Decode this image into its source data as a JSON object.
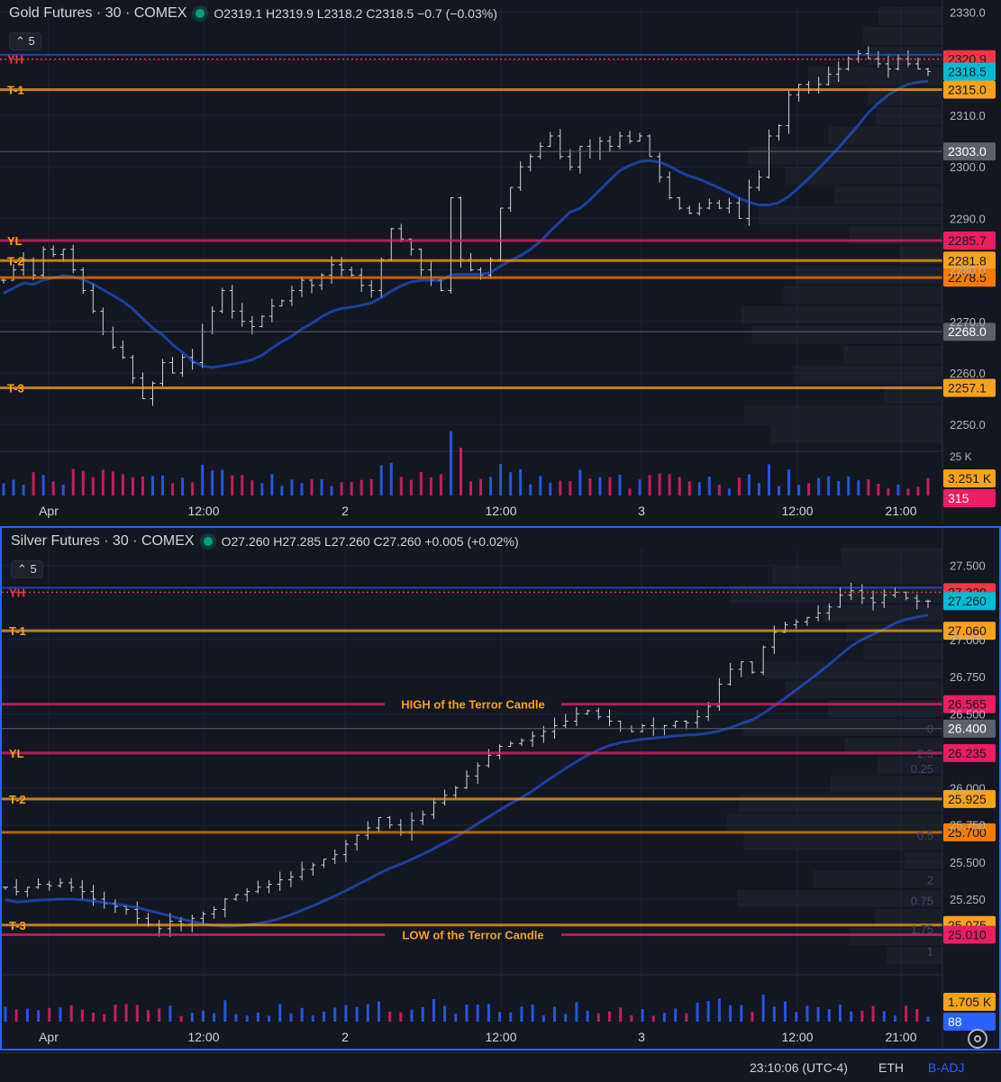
{
  "colors": {
    "bg": "#131722",
    "grid": "#1f2330",
    "up_candle": "#d1d4dc",
    "ma": "#2962ff",
    "orange": "#f7a21b",
    "pink": "#e91e63",
    "red": "#f23645",
    "cyan": "#00bcd4",
    "gray": "#5d606b",
    "vol_up": "#2962ff",
    "vol_down": "#e91e63",
    "blue_tag": "#2962ff"
  },
  "panes": [
    {
      "id": "gold",
      "title": "Gold Futures · 30 · COMEX",
      "ohlc": "O2319.1  H2319.9  L2318.2  C2318.5  −0.7 (−0.03%)",
      "indicator_count": "5",
      "chart_data": {
        "type": "candlestick",
        "title": "Gold Futures · 30 · COMEX",
        "ylim": [
          2246,
          2331
        ],
        "y_ticks": [
          2250.0,
          2260.0,
          2270.0,
          2280.0,
          2290.0,
          2300.0,
          2310.0,
          2330.0
        ],
        "y_tick_labels": [
          "2250.0",
          "2260.0",
          "2270.0",
          "2280.0",
          "2290.0",
          "2300.0",
          "2310.0",
          "2330.0"
        ],
        "x_tick_labels": [
          "Apr",
          "12:00",
          "2",
          "12:00",
          "3",
          "12:00",
          "21:00"
        ],
        "close_path": [
          2278,
          2280,
          2282,
          2279,
          2284,
          2283,
          2284,
          2280,
          2276,
          2272,
          2268,
          2265,
          2263,
          2259,
          2255,
          2258,
          2262,
          2260,
          2263,
          2262,
          2268,
          2272,
          2276,
          2272,
          2270,
          2269,
          2271,
          2273,
          2274,
          2276,
          2278,
          2277,
          2279,
          2281,
          2280,
          2279,
          2277,
          2276,
          2282,
          2288,
          2286,
          2284,
          2280,
          2278,
          2276,
          2294,
          2282,
          2280,
          2279,
          2282,
          2292,
          2296,
          2300,
          2302,
          2304,
          2306,
          2302,
          2300,
          2304,
          2303,
          2305,
          2304,
          2306,
          2305,
          2306,
          2302,
          2298,
          2294,
          2292,
          2291,
          2292,
          2293,
          2292,
          2293,
          2290,
          2296,
          2298,
          2306,
          2308,
          2314,
          2316,
          2315,
          2316,
          2318,
          2319,
          2321,
          2322,
          2321,
          2320,
          2319,
          2321,
          2320,
          2319,
          2318.5
        ],
        "volume_label": "25 K",
        "levels": [
          {
            "label": "YH",
            "price": 2320.9,
            "tag": "2320.9",
            "color": "#f23645",
            "style": "dotted"
          },
          {
            "label": "",
            "price": 2318.5,
            "tag": "2318.5",
            "color": "#00bcd4",
            "style": "none"
          },
          {
            "label": "T-1",
            "price": 2315.0,
            "tag": "2315.0",
            "color": "#f7a21b",
            "style": "solid"
          },
          {
            "label": "",
            "price": 2303.0,
            "tag": "2303.0",
            "color": "#5d606b",
            "style": "thin"
          },
          {
            "label": "YL",
            "price": 2285.7,
            "tag": "2285.7",
            "color": "#e91e63",
            "style": "solid"
          },
          {
            "label": "T-2",
            "price": 2281.8,
            "tag": "2281.8",
            "color": "#f7a21b",
            "style": "solid"
          },
          {
            "label": "",
            "price": 2278.5,
            "tag": "2278.5",
            "color": "#f57c00",
            "style": "solid"
          },
          {
            "label": "",
            "price": 2268.0,
            "tag": "2268.0",
            "color": "#5d606b",
            "style": "thin"
          },
          {
            "label": "T-3",
            "price": 2257.1,
            "tag": "2257.1",
            "color": "#f7a21b",
            "style": "solid"
          }
        ],
        "volume_tags": [
          {
            "text": "3.251 K",
            "color": "#f7a21b"
          },
          {
            "text": "315",
            "color": "#e91e63"
          }
        ],
        "annotations": []
      }
    },
    {
      "id": "silver",
      "title": "Silver Futures · 30 · COMEX",
      "ohlc": "O27.260  H27.285  L27.260  C27.260  +0.005 (+0.02%)",
      "indicator_count": "5",
      "chart_data": {
        "type": "candlestick",
        "title": "Silver Futures · 30 · COMEX",
        "ylim": [
          24.8,
          27.62
        ],
        "y_ticks": [
          25.25,
          25.5,
          25.75,
          26.0,
          26.5,
          26.75,
          27.0,
          27.5
        ],
        "y_tick_labels": [
          "25.250",
          "25.500",
          "25.750",
          "26.000",
          "26.500",
          "26.750",
          "27.000",
          "27.500"
        ],
        "x_tick_labels": [
          "Apr",
          "12:00",
          "2",
          "12:00",
          "3",
          "12:00",
          "21:00"
        ],
        "close_path": [
          25.33,
          25.3,
          25.33,
          25.35,
          25.34,
          25.36,
          25.33,
          25.3,
          25.25,
          25.22,
          25.2,
          25.18,
          25.12,
          25.08,
          25.05,
          25.1,
          25.08,
          25.12,
          25.15,
          25.18,
          25.25,
          25.28,
          25.3,
          25.33,
          25.35,
          25.38,
          25.4,
          25.45,
          25.48,
          25.52,
          25.55,
          25.62,
          25.68,
          25.73,
          25.8,
          25.75,
          25.7,
          25.78,
          25.82,
          25.9,
          25.95,
          26.0,
          26.08,
          26.15,
          26.22,
          26.28,
          26.3,
          26.32,
          26.35,
          26.38,
          26.42,
          26.45,
          26.5,
          26.52,
          26.48,
          26.45,
          26.4,
          26.38,
          26.42,
          26.4,
          26.42,
          26.45,
          26.44,
          26.48,
          26.55,
          26.7,
          26.8,
          26.85,
          26.78,
          26.95,
          27.05,
          27.1,
          27.12,
          27.15,
          27.18,
          27.22,
          27.3,
          27.33,
          27.28,
          27.25,
          27.3,
          27.32,
          27.28,
          27.26,
          27.26
        ],
        "volume_label": "",
        "levels": [
          {
            "label": "YH",
            "price": 27.32,
            "tag": "27.320",
            "color": "#f23645",
            "style": "dotted"
          },
          {
            "label": "",
            "price": 27.26,
            "tag": "27.260",
            "color": "#00bcd4",
            "style": "none"
          },
          {
            "label": "T-1",
            "price": 27.06,
            "tag": "27.060",
            "color": "#f7a21b",
            "style": "solid"
          },
          {
            "label": "",
            "price": 26.565,
            "tag": "26.565",
            "color": "#e91e63",
            "style": "solid"
          },
          {
            "label": "",
            "price": 26.4,
            "tag": "26.400",
            "color": "#5d606b",
            "style": "thin"
          },
          {
            "label": "YL",
            "price": 26.235,
            "tag": "26.235",
            "color": "#e91e63",
            "style": "solid"
          },
          {
            "label": "T-2",
            "price": 25.925,
            "tag": "25.925",
            "color": "#f7a21b",
            "style": "solid"
          },
          {
            "label": "",
            "price": 25.7,
            "tag": "25.700",
            "color": "#f57c00",
            "style": "solid"
          },
          {
            "label": "T-3",
            "price": 25.075,
            "tag": "25.075",
            "color": "#f7a21b",
            "style": "solid"
          },
          {
            "label": "",
            "price": 25.01,
            "tag": "25.010",
            "color": "#e91e63",
            "style": "solid"
          }
        ],
        "fib_labels": [
          {
            "text": "0",
            "price": 26.4
          },
          {
            "text": "2.5",
            "price": 26.235
          },
          {
            "text": "0.25",
            "price": 26.13
          },
          {
            "text": "0.5",
            "price": 25.68
          },
          {
            "text": "2",
            "price": 25.38
          },
          {
            "text": "0.75",
            "price": 25.24
          },
          {
            "text": "1.75",
            "price": 25.05
          },
          {
            "text": "1",
            "price": 24.9
          }
        ],
        "volume_tags": [
          {
            "text": "1.705 K",
            "color": "#f7a21b"
          },
          {
            "text": "88",
            "color": "#2962ff"
          }
        ],
        "annotations": [
          {
            "text": "HIGH of the Terror Candle",
            "price": 26.565
          },
          {
            "text": "LOW of the Terror Candle",
            "price": 25.01
          }
        ]
      }
    }
  ],
  "statusbar": {
    "time": "23:10:06 (UTC-4)",
    "session": "ETH",
    "adjustment": "B-ADJ"
  }
}
